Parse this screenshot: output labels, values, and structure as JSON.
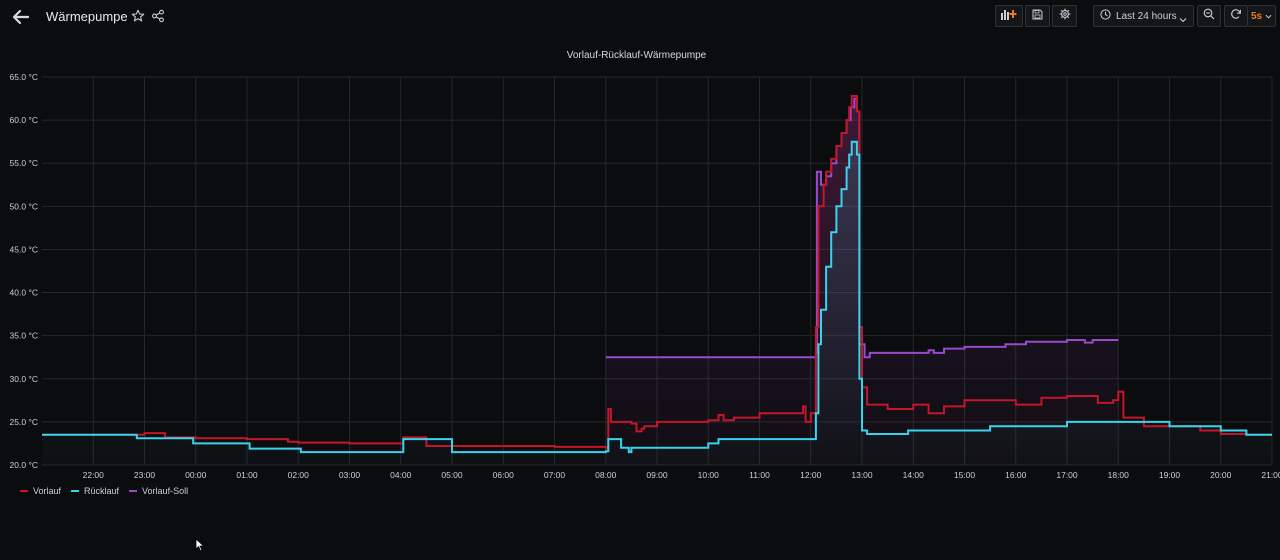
{
  "header": {
    "title": "Wärmepumpe",
    "time_range_label": "Last 24 hours",
    "refresh_interval": "5s",
    "icons": {
      "back": "arrow-left-icon",
      "star": "star-icon",
      "share": "share-icon",
      "add_panel": "add-panel-icon",
      "save": "save-icon",
      "settings": "gear-icon",
      "clock": "clock-icon",
      "zoom_out": "zoom-out-icon",
      "refresh": "refresh-icon"
    }
  },
  "colors": {
    "background": "#0b0c0e",
    "vorlauf": "#c4162a",
    "ruecklauf": "#37d4eb",
    "vorlauf_soll": "#9b49cc",
    "refresh_accent": "#eb7b18"
  },
  "chart_data": {
    "type": "line",
    "title": "Vorlauf-Rücklauf-Wärmepumpe",
    "xlabel": "",
    "ylabel": "",
    "x_unit": "hour of day (values past 24 are the next day)",
    "xlim": [
      21.0,
      45.0
    ],
    "ylim": [
      20,
      65
    ],
    "y_ticks": [
      "20.0 °C",
      "25.0 °C",
      "30.0 °C",
      "35.0 °C",
      "40.0 °C",
      "45.0 °C",
      "50.0 °C",
      "55.0 °C",
      "60.0 °C",
      "65.0 °C"
    ],
    "x_ticks": [
      "22:00",
      "23:00",
      "00:00",
      "01:00",
      "02:00",
      "03:00",
      "04:00",
      "05:00",
      "06:00",
      "07:00",
      "08:00",
      "09:00",
      "10:00",
      "11:00",
      "12:00",
      "13:00",
      "14:00",
      "15:00",
      "16:00",
      "17:00",
      "18:00",
      "19:00",
      "20:00",
      "21:00"
    ],
    "grid": true,
    "legend_position": "bottom-left",
    "series": [
      {
        "name": "Vorlauf",
        "color": "#c4162a",
        "x": [
          21.0,
          22.9,
          23.0,
          23.35,
          23.4,
          24.0,
          25.0,
          25.8,
          26.0,
          27.0,
          27.5,
          28.0,
          28.05,
          28.5,
          29.0,
          30.0,
          31.0,
          32.0,
          32.05,
          32.1,
          32.5,
          32.6,
          32.7,
          32.75,
          33.0,
          33.5,
          34.0,
          34.2,
          34.3,
          34.5,
          35.0,
          35.8,
          35.85,
          35.9,
          36.0,
          36.1,
          36.15,
          36.25,
          36.3,
          36.4,
          36.5,
          36.6,
          36.7,
          36.75,
          36.8,
          36.9,
          36.95,
          37.0,
          37.1,
          37.5,
          37.9,
          38.0,
          38.3,
          38.6,
          39.0,
          39.5,
          39.8,
          40.0,
          40.5,
          41.0,
          41.4,
          41.6,
          41.9,
          42.0,
          42.05,
          42.1,
          42.5,
          43.0,
          43.6,
          44.0,
          44.5,
          45.0
        ],
        "y": [
          23.5,
          23.5,
          23.7,
          23.7,
          23.2,
          23.1,
          23.0,
          22.7,
          22.6,
          22.5,
          22.5,
          22.5,
          23.2,
          22.2,
          22.2,
          22.2,
          22.1,
          22.0,
          26.5,
          25.0,
          24.8,
          23.9,
          24.2,
          24.5,
          25.0,
          25.0,
          25.2,
          25.8,
          25.2,
          25.5,
          26.0,
          26.0,
          26.8,
          25.0,
          26.0,
          36.0,
          50.0,
          52.5,
          54.0,
          55.5,
          57.0,
          58.5,
          60.0,
          61.5,
          62.8,
          61.0,
          36.0,
          29.0,
          27.0,
          26.5,
          26.5,
          27.0,
          26.0,
          26.8,
          27.5,
          27.5,
          27.5,
          27.0,
          27.8,
          28.0,
          28.0,
          27.2,
          27.5,
          28.5,
          28.5,
          25.5,
          24.5,
          24.5,
          24.0,
          23.6,
          23.5,
          23.5
        ]
      },
      {
        "name": "Rücklauf",
        "color": "#37d4eb",
        "x": [
          21.0,
          22.8,
          22.85,
          23.9,
          23.95,
          25.0,
          25.05,
          26.0,
          26.05,
          28.0,
          28.05,
          29.0,
          30.0,
          31.0,
          32.0,
          32.05,
          32.3,
          32.45,
          32.5,
          33.0,
          33.5,
          34.0,
          34.2,
          34.5,
          35.0,
          35.9,
          36.1,
          36.15,
          36.2,
          36.3,
          36.4,
          36.5,
          36.6,
          36.7,
          36.75,
          36.8,
          36.9,
          36.95,
          37.0,
          37.1,
          37.5,
          37.8,
          37.9,
          38.5,
          39.0,
          39.4,
          39.5,
          40.0,
          40.5,
          40.9,
          41.0,
          41.5,
          42.0,
          43.0,
          44.0,
          44.5,
          45.0
        ],
        "y": [
          23.5,
          23.5,
          23.1,
          23.1,
          22.5,
          22.5,
          21.9,
          21.9,
          21.5,
          21.5,
          23.0,
          21.5,
          21.5,
          21.5,
          21.6,
          23.0,
          22.0,
          21.5,
          22.0,
          22.0,
          22.0,
          22.5,
          23.0,
          23.0,
          23.0,
          23.0,
          26.0,
          34.0,
          38.0,
          43.0,
          47.0,
          50.0,
          52.0,
          54.5,
          56.0,
          57.5,
          56.0,
          30.0,
          24.0,
          23.6,
          23.6,
          23.6,
          24.0,
          24.0,
          24.0,
          24.0,
          24.5,
          24.5,
          24.5,
          24.5,
          25.0,
          25.0,
          25.0,
          24.5,
          24.0,
          23.5,
          23.5
        ]
      },
      {
        "name": "Vorlauf-Soll",
        "color": "#9b49cc",
        "x": [
          32.0,
          32.0,
          36.05,
          36.1,
          36.12,
          36.2,
          36.3,
          36.4,
          36.5,
          36.6,
          36.7,
          36.78,
          36.85,
          36.9,
          36.95,
          37.05,
          37.15,
          38.3,
          38.4,
          38.6,
          39.0,
          39.8,
          40.0,
          40.2,
          40.6,
          41.0,
          41.3,
          41.35,
          41.5,
          42.0
        ],
        "y": [
          null,
          32.5,
          32.5,
          33.0,
          54.0,
          52.5,
          53.5,
          55.0,
          57.0,
          58.5,
          60.0,
          61.5,
          62.5,
          61.0,
          34.0,
          32.5,
          33.0,
          33.3,
          33.0,
          33.5,
          33.7,
          34.0,
          34.0,
          34.3,
          34.3,
          34.5,
          34.5,
          34.2,
          34.5,
          34.5
        ]
      }
    ]
  }
}
